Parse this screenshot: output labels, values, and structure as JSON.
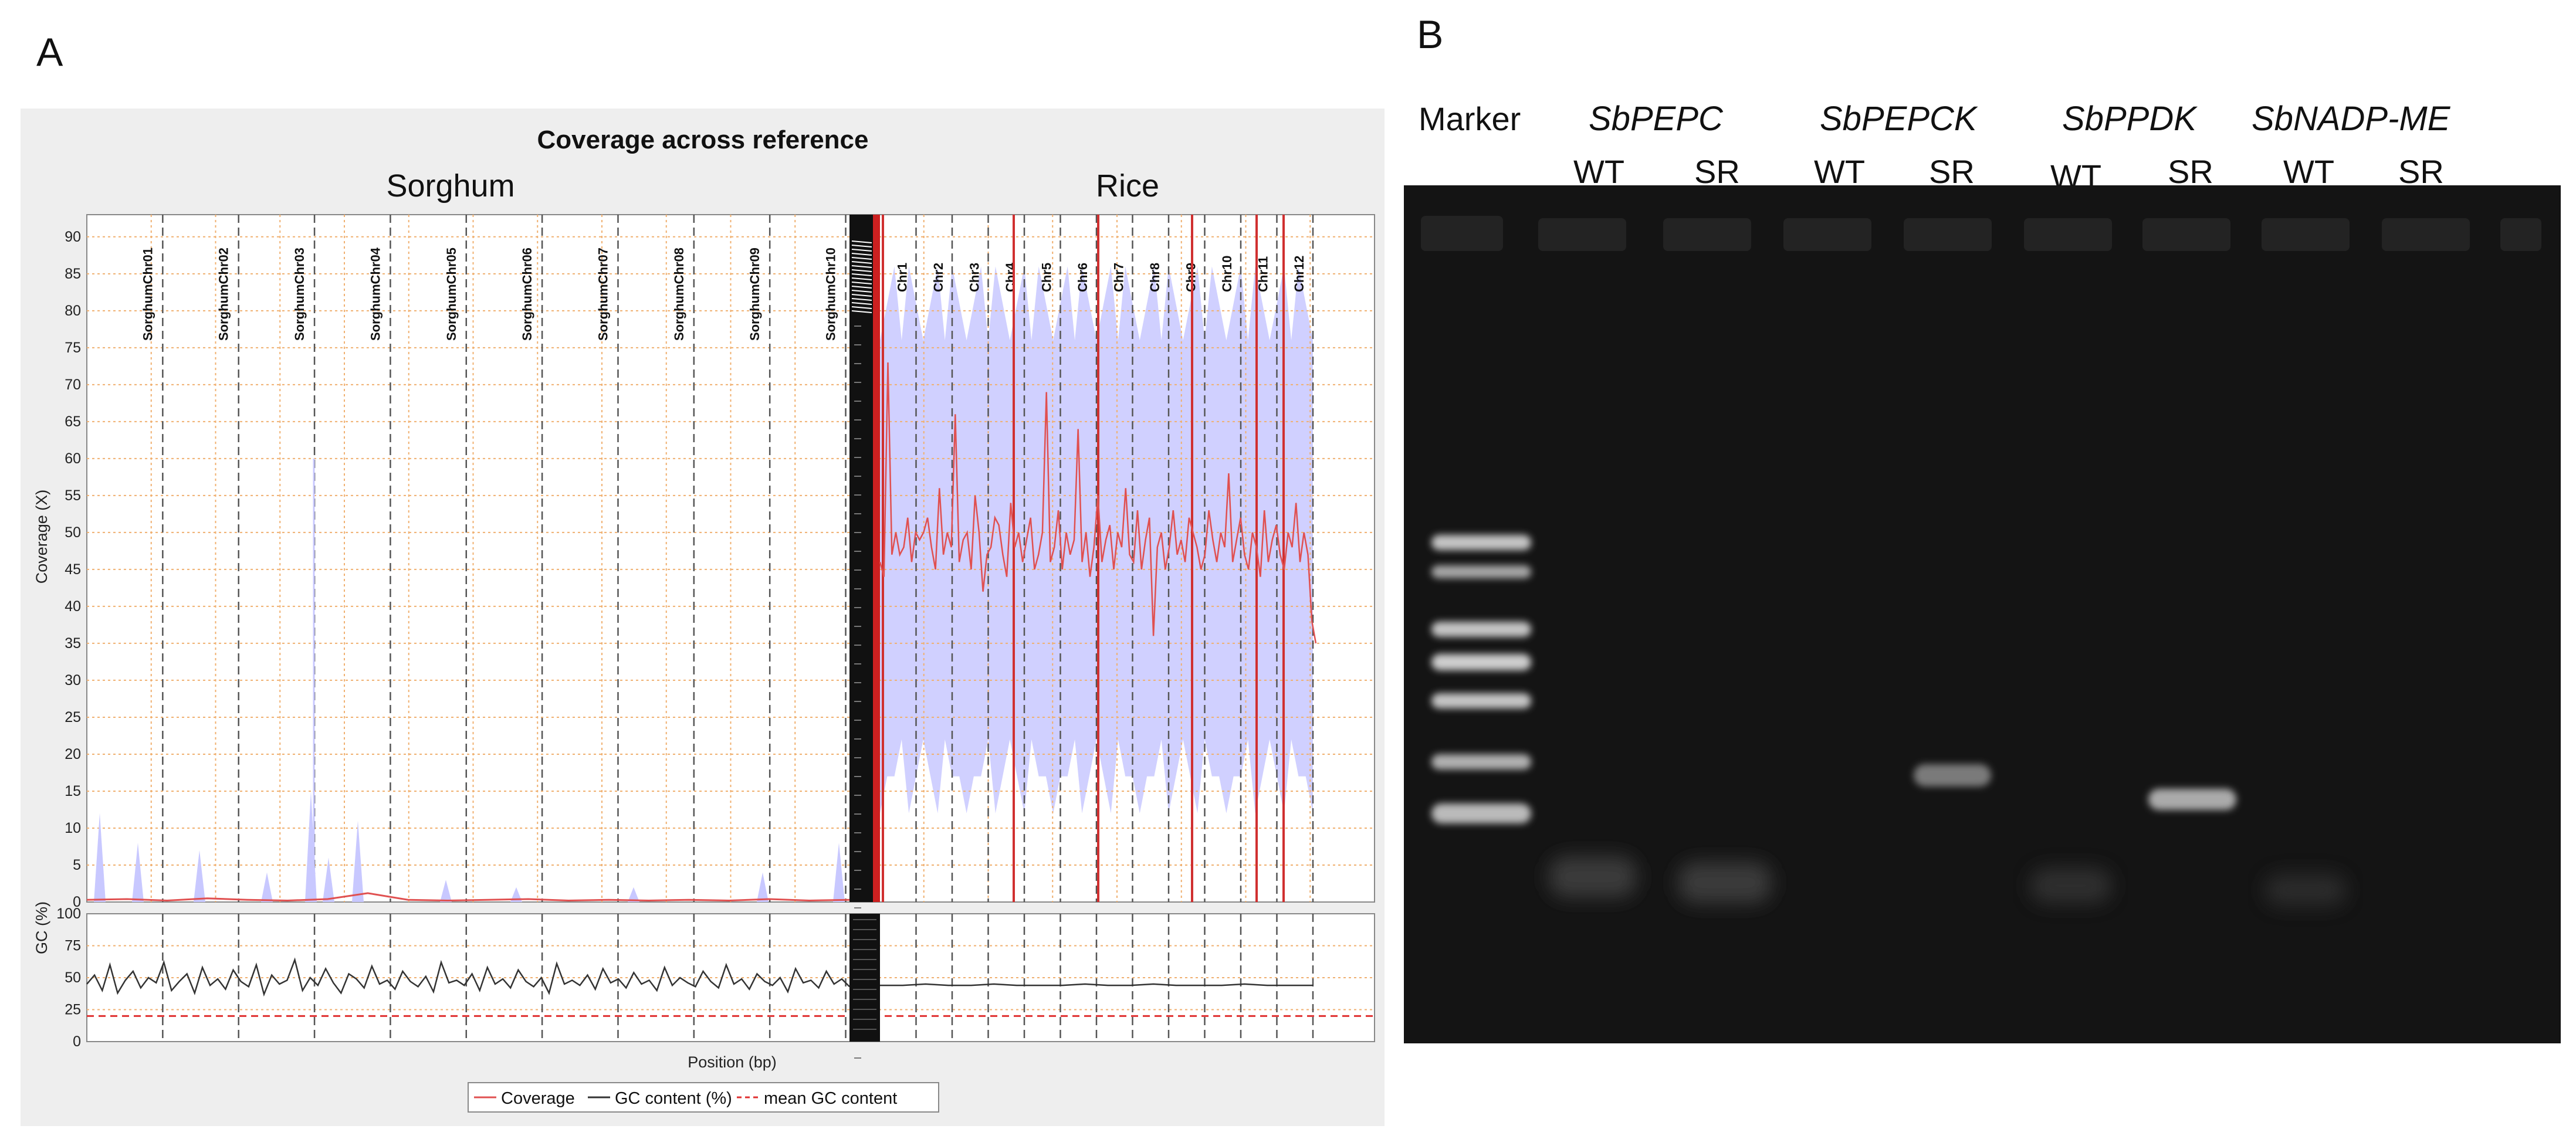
{
  "panel_a": {
    "letter": "A",
    "region_labels": [
      "Sorghum",
      "Rice"
    ]
  },
  "panel_b": {
    "letter": "B",
    "marker_label": "Marker",
    "genes": [
      {
        "name": "SbPEPC",
        "lanes": [
          "WT",
          "SR"
        ]
      },
      {
        "name": "SbPEPCK",
        "lanes": [
          "WT",
          "SR"
        ]
      },
      {
        "name": "SbPPDK",
        "lanes": [
          "WT",
          "SR"
        ]
      },
      {
        "name": "SbNADP-ME",
        "lanes": [
          "WT",
          "SR"
        ]
      }
    ],
    "band_color": "#d8d8d8",
    "gel_color": "#141414"
  },
  "chart_data": [
    {
      "type": "line",
      "title": "Coverage across reference",
      "xlabel": "",
      "ylabel": "Coverage (X)",
      "ylim": [
        0,
        93
      ],
      "yticks": [
        0,
        5,
        10,
        15,
        20,
        25,
        30,
        35,
        40,
        45,
        50,
        55,
        60,
        65,
        70,
        75,
        80,
        85,
        90
      ],
      "grid": true,
      "chromosomes": [
        "SorghumChr01",
        "SorghumChr02",
        "SorghumChr03",
        "SorghumChr04",
        "SorghumChr05",
        "SorghumChr06",
        "SorghumChr07",
        "SorghumChr08",
        "SorghumChr09",
        "SorghumChr10",
        "Chr1",
        "Chr2",
        "Chr3",
        "Chr4",
        "Chr5",
        "Chr6",
        "Chr7",
        "Chr8",
        "Chr9",
        "Chr10",
        "Chr11",
        "Chr12"
      ],
      "series": [
        {
          "name": "Coverage",
          "color": "#e05050",
          "x_region": "Sorghum",
          "values": [
            0.3,
            0.4,
            0.2,
            0.5,
            0.3,
            0.2,
            0.4,
            1.2,
            0.3,
            0.2,
            0.3,
            0.4,
            0.2,
            0.3,
            0.2,
            0.3,
            0.2,
            0.4,
            0.2,
            0.3
          ]
        },
        {
          "name": "Coverage",
          "color": "#e05050",
          "x_region": "Rice",
          "values": [
            46,
            44,
            73,
            47,
            50,
            47,
            48,
            52,
            46,
            50,
            49,
            50,
            52,
            48,
            45,
            56,
            47,
            50,
            48,
            66,
            46,
            49,
            50,
            45,
            55,
            50,
            42,
            47,
            48,
            52,
            51,
            47,
            44,
            54,
            48,
            50,
            46,
            49,
            52,
            45,
            47,
            50,
            69,
            46,
            48,
            53,
            45,
            50,
            47,
            49,
            64,
            46,
            50,
            44,
            48,
            55,
            46,
            49,
            51,
            45,
            50,
            48,
            56,
            47,
            46,
            53,
            45,
            49,
            52,
            36,
            48,
            50,
            45,
            48,
            53,
            47,
            49,
            46,
            52,
            50,
            48,
            45,
            47,
            53,
            49,
            46,
            50,
            48,
            58,
            46,
            49,
            52,
            47,
            45,
            50,
            48,
            44,
            53,
            46,
            49,
            51,
            47,
            45,
            50,
            48,
            54,
            46,
            50,
            47,
            38,
            35
          ]
        },
        {
          "name": "Coverage range",
          "color": "#c8c8ff",
          "x_region": "Rice",
          "values": [
            28,
            90
          ]
        }
      ],
      "legend": [
        "Coverage",
        "GC content (%)",
        "mean GC content"
      ],
      "legend_placement": "bottom"
    },
    {
      "type": "line",
      "title": "",
      "xlabel": "Position (bp)",
      "ylabel": "GC (%)",
      "ylim": [
        0,
        100
      ],
      "yticks": [
        0,
        25,
        50,
        75,
        100
      ],
      "grid": true,
      "series": [
        {
          "name": "GC content (%)",
          "color": "#333333",
          "x_region": "Sorghum",
          "values": [
            45,
            52,
            40,
            60,
            38,
            48,
            55,
            42,
            50,
            46,
            62,
            40,
            47,
            53,
            38,
            58,
            44,
            49,
            41,
            56,
            47,
            43,
            60,
            37,
            52,
            45,
            48,
            64,
            40,
            50,
            44,
            57,
            46,
            38,
            53,
            49,
            42,
            59,
            45,
            48,
            41,
            55,
            47,
            43,
            51,
            39,
            62,
            46,
            48,
            44,
            53,
            40,
            58,
            45,
            49,
            42,
            56,
            47,
            43,
            50,
            38,
            61,
            45,
            48,
            44,
            52,
            41,
            57,
            46,
            49,
            42,
            54,
            45,
            48,
            40,
            58,
            44,
            50,
            46,
            43,
            55,
            47,
            42,
            60,
            45,
            49,
            41,
            53,
            47,
            44,
            50,
            39,
            57,
            46,
            48,
            42,
            55,
            45,
            49,
            43
          ]
        },
        {
          "name": "GC content (%)",
          "color": "#333333",
          "x_region": "Rice",
          "values": [
            44,
            44,
            45,
            44,
            44,
            45,
            44,
            44,
            44,
            45,
            44,
            44,
            45,
            44,
            44,
            44,
            45,
            44,
            44,
            44
          ]
        },
        {
          "name": "mean GC content",
          "color": "#e03030",
          "value": 20
        }
      ]
    }
  ]
}
